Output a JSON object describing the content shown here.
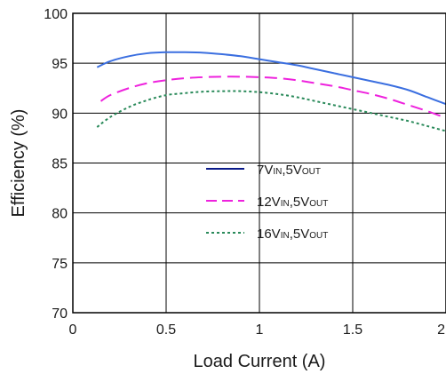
{
  "chart_data": {
    "type": "line",
    "title": "",
    "xlabel": "Load Current (A)",
    "ylabel": "Efficiency (%)",
    "xlim": [
      0,
      2
    ],
    "ylim": [
      70,
      100
    ],
    "x_ticks": [
      "0",
      "0.5",
      "1",
      "1.5",
      "2"
    ],
    "y_ticks": [
      "70",
      "75",
      "80",
      "85",
      "90",
      "95",
      "100"
    ],
    "grid": true,
    "legend_position": "center-right",
    "series": [
      {
        "name": "7VIN,5VOUT",
        "label_main": "7V",
        "label_sub1": "IN",
        "label_sep": ",5V",
        "label_sub2": "OUT",
        "color": "#3b6fe0",
        "style": "solid",
        "x": [
          0.13,
          0.2,
          0.3,
          0.4,
          0.5,
          0.6,
          0.7,
          0.8,
          0.9,
          1.0,
          1.1,
          1.2,
          1.3,
          1.4,
          1.5,
          1.6,
          1.7,
          1.8,
          1.9,
          2.0
        ],
        "y": [
          94.6,
          95.2,
          95.7,
          96.0,
          96.1,
          96.1,
          96.05,
          95.9,
          95.7,
          95.4,
          95.1,
          94.8,
          94.4,
          94.0,
          93.6,
          93.2,
          92.8,
          92.3,
          91.6,
          90.9
        ]
      },
      {
        "name": "12VIN,5VOUT",
        "label_main": "12V",
        "label_sub1": "IN",
        "label_sep": ",5V",
        "label_sub2": "OUT",
        "color": "#ee22dd",
        "style": "dashed",
        "x": [
          0.15,
          0.2,
          0.3,
          0.4,
          0.5,
          0.6,
          0.7,
          0.8,
          0.9,
          1.0,
          1.1,
          1.2,
          1.3,
          1.4,
          1.5,
          1.6,
          1.7,
          1.8,
          1.9,
          2.0
        ],
        "y": [
          91.2,
          91.8,
          92.5,
          93.0,
          93.3,
          93.5,
          93.6,
          93.65,
          93.65,
          93.6,
          93.5,
          93.3,
          93.0,
          92.7,
          92.3,
          91.9,
          91.4,
          90.8,
          90.2,
          89.5
        ]
      },
      {
        "name": "16VIN,5VOUT",
        "label_main": "16V",
        "label_sub1": "IN",
        "label_sep": ",5V",
        "label_sub2": "OUT",
        "color": "#2a8a5a",
        "style": "dotted",
        "x": [
          0.13,
          0.2,
          0.3,
          0.4,
          0.5,
          0.6,
          0.7,
          0.8,
          0.9,
          1.0,
          1.1,
          1.2,
          1.3,
          1.4,
          1.5,
          1.6,
          1.7,
          1.8,
          1.9,
          2.0
        ],
        "y": [
          88.6,
          89.6,
          90.6,
          91.3,
          91.8,
          92.0,
          92.15,
          92.2,
          92.2,
          92.1,
          91.9,
          91.6,
          91.2,
          90.8,
          90.4,
          90.0,
          89.6,
          89.2,
          88.7,
          88.2
        ]
      }
    ]
  }
}
